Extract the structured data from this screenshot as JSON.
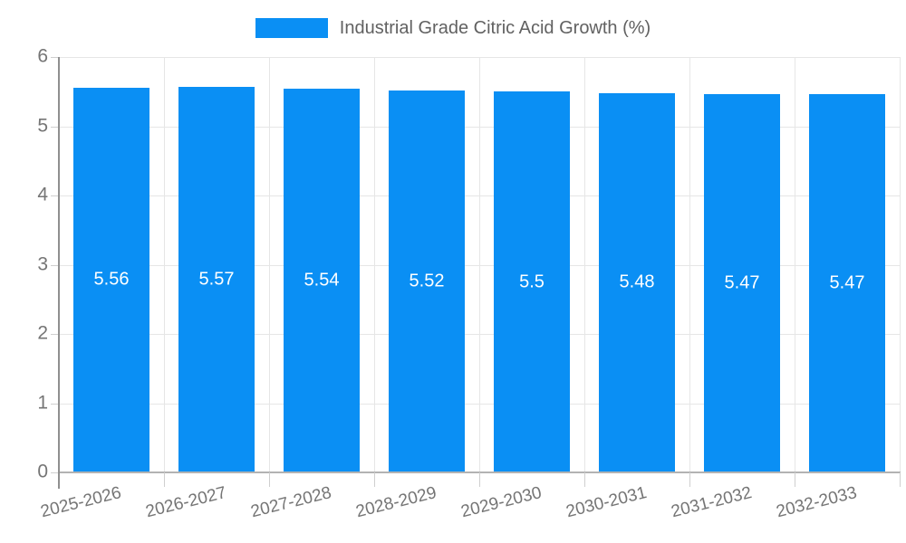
{
  "legend": {
    "label": "Industrial Grade Citric Acid Growth (%)"
  },
  "chart_data": {
    "type": "bar",
    "title": "",
    "xlabel": "",
    "ylabel": "",
    "series_name": "Industrial Grade Citric Acid Growth (%)",
    "categories": [
      "2025-2026",
      "2026-2027",
      "2027-2028",
      "2028-2029",
      "2029-2030",
      "2030-2031",
      "2031-2032",
      "2032-2033"
    ],
    "values": [
      5.56,
      5.57,
      5.54,
      5.52,
      5.5,
      5.48,
      5.47,
      5.47
    ],
    "value_labels": [
      "5.56",
      "5.57",
      "5.54",
      "5.52",
      "5.5",
      "5.48",
      "5.47",
      "5.47"
    ],
    "ylim": [
      0,
      6
    ],
    "yticks": [
      0,
      1,
      2,
      3,
      4,
      5,
      6
    ],
    "grid": true,
    "legend_position": "top-center",
    "bar_color": "#0a8ff4",
    "value_label_color": "#ffffff"
  }
}
